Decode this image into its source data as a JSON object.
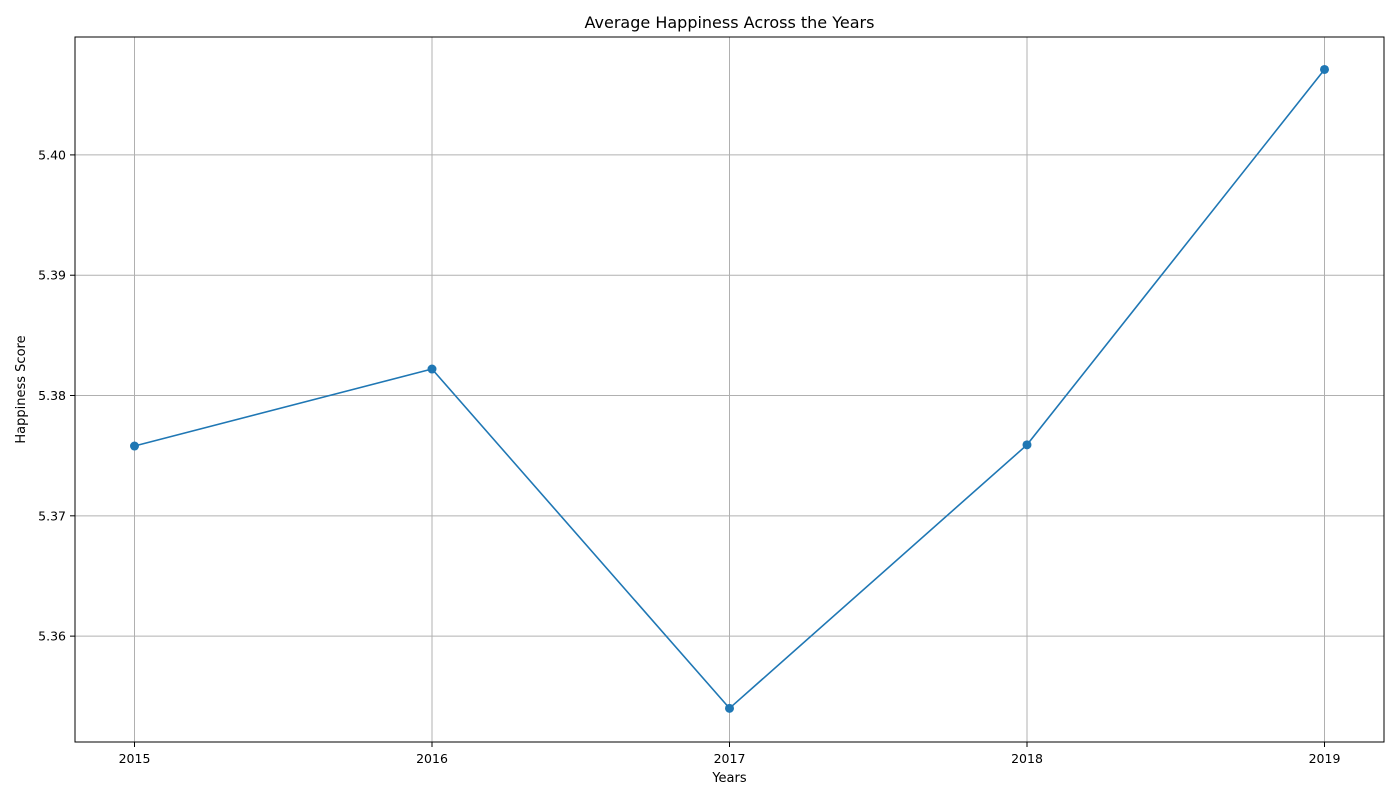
{
  "chart_data": {
    "type": "line",
    "title": "Average Happiness Across the Years",
    "xlabel": "Years",
    "ylabel": "Happiness Score",
    "x": [
      "2015",
      "2016",
      "2017",
      "2018",
      "2019"
    ],
    "series": [
      {
        "values": [
          5.3758,
          5.3822,
          5.354,
          5.3759,
          5.4071
        ],
        "color": "#1f77b4",
        "marker": "circle"
      }
    ],
    "ylim": [
      5.3512,
      5.4098
    ],
    "yticks": [
      "5.36",
      "5.37",
      "5.38",
      "5.39",
      "5.40"
    ],
    "grid": true,
    "legend": "none"
  }
}
